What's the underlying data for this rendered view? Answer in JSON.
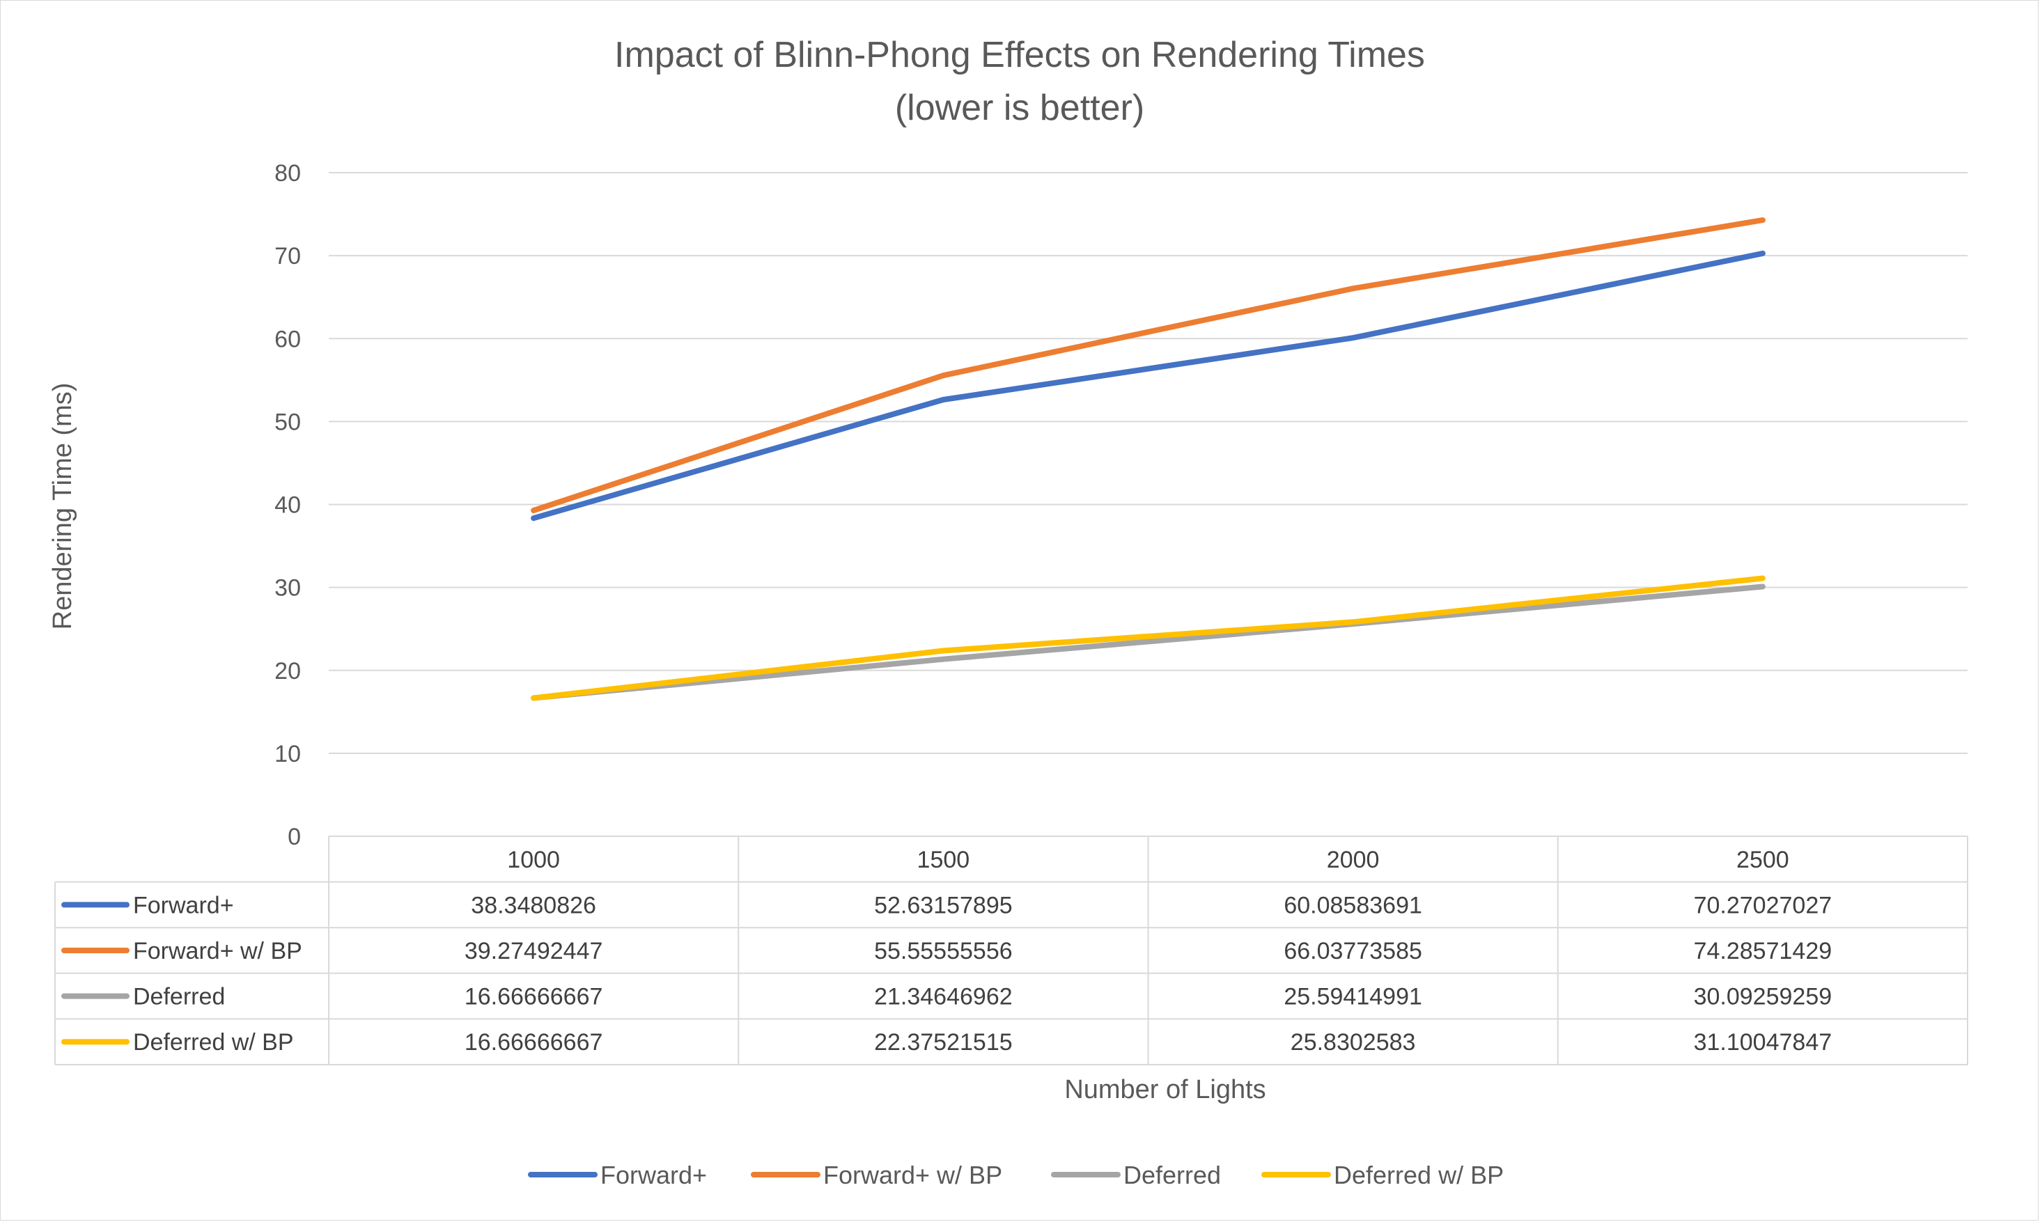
{
  "chart_data": {
    "type": "line",
    "title": "Impact of Blinn-Phong Effects on Rendering Times",
    "subtitle": "(lower is better)",
    "xlabel": "Number of Lights",
    "ylabel": "Rendering Time (ms)",
    "categories": [
      "1000",
      "1500",
      "2000",
      "2500"
    ],
    "ylim": [
      0,
      80
    ],
    "yticks": [
      "0",
      "10",
      "20",
      "30",
      "40",
      "50",
      "60",
      "70",
      "80"
    ],
    "grid": true,
    "legend_position": "bottom",
    "data_table": true,
    "series": [
      {
        "name": "Forward+",
        "color": "#4472C4",
        "values": [
          38.3480826,
          52.63157895,
          60.08583691,
          70.27027027
        ],
        "labels": [
          "38.3480826",
          "52.63157895",
          "60.08583691",
          "70.27027027"
        ]
      },
      {
        "name": "Forward+ w/ BP",
        "color": "#ED7D31",
        "values": [
          39.27492447,
          55.55555556,
          66.03773585,
          74.28571429
        ],
        "labels": [
          "39.27492447",
          "55.55555556",
          "66.03773585",
          "74.28571429"
        ]
      },
      {
        "name": "Deferred",
        "color": "#A5A5A5",
        "values": [
          16.66666667,
          21.34646962,
          25.59414991,
          30.09259259
        ],
        "labels": [
          "16.66666667",
          "21.34646962",
          "25.59414991",
          "30.09259259"
        ]
      },
      {
        "name": "Deferred w/ BP",
        "color": "#FFC000",
        "values": [
          16.66666667,
          22.37521515,
          25.8302583,
          31.10047847
        ],
        "labels": [
          "16.66666667",
          "22.37521515",
          "25.8302583",
          "31.10047847"
        ]
      }
    ]
  }
}
